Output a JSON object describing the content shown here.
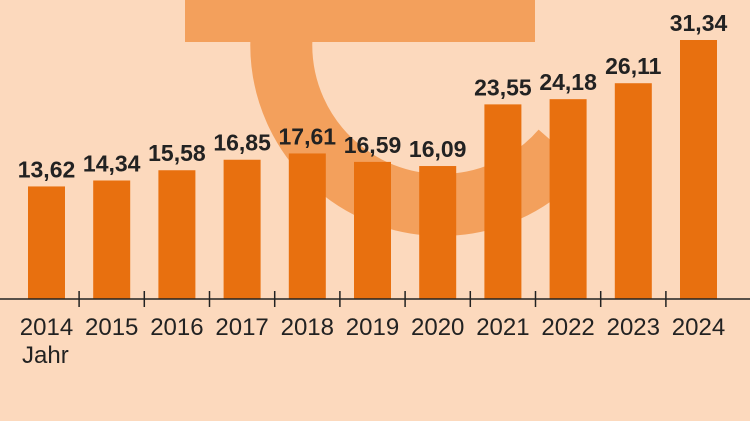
{
  "chart_data": {
    "type": "bar",
    "categories": [
      "2014",
      "2015",
      "2016",
      "2017",
      "2018",
      "2019",
      "2020",
      "2021",
      "2022",
      "2023",
      "2024"
    ],
    "values": [
      13.62,
      14.34,
      15.58,
      16.85,
      17.61,
      16.59,
      16.09,
      23.55,
      24.18,
      26.11,
      31.34
    ],
    "value_labels": [
      "13,62",
      "14,34",
      "15,58",
      "16,85",
      "17,61",
      "16,59",
      "16,09",
      "23,55",
      "24,18",
      "26,11",
      "31,34"
    ],
    "xlabel": "Jahr",
    "ylim": [
      0,
      32
    ],
    "grid": false,
    "bar_color": "#e8700f",
    "background_color": "#fcd9bd",
    "watermark": "euro-sign-icon",
    "watermark_color": "#f3a05c"
  }
}
